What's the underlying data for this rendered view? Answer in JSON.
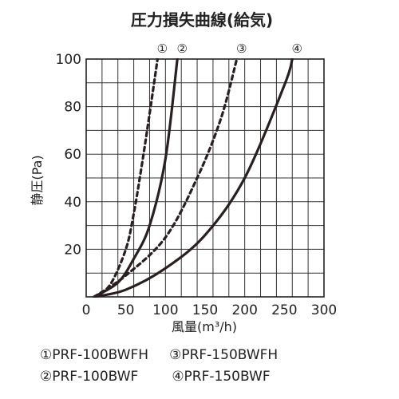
{
  "chart_data": {
    "type": "line",
    "title": "圧力損失曲線(給気)",
    "xlabel": "風量(m³/h)",
    "ylabel": "静圧(Pa)",
    "xlim": [
      0,
      300
    ],
    "ylim": [
      0,
      100
    ],
    "x_ticks": [
      "0",
      "50",
      "100",
      "150",
      "200",
      "250",
      "300"
    ],
    "y_ticks": [
      "20",
      "40",
      "60",
      "80",
      "100"
    ],
    "grid": true,
    "series": [
      {
        "name": "PRF-100BWFH",
        "marker": "①",
        "style": "dashed",
        "x": [
          10,
          30,
          50,
          60,
          70,
          80,
          90
        ],
        "y": [
          0,
          5,
          20,
          35,
          55,
          77,
          100
        ]
      },
      {
        "name": "PRF-100BWF",
        "marker": "②",
        "style": "solid",
        "x": [
          10,
          40,
          60,
          80,
          100,
          115
        ],
        "y": [
          0,
          6,
          16,
          30,
          58,
          100
        ]
      },
      {
        "name": "PRF-150BWFH",
        "marker": "③",
        "style": "dashed",
        "x": [
          10,
          50,
          100,
          140,
          170,
          190
        ],
        "y": [
          0,
          9,
          25,
          50,
          75,
          100
        ]
      },
      {
        "name": "PRF-150BWF",
        "marker": "④",
        "style": "solid",
        "x": [
          10,
          50,
          100,
          150,
          200,
          250,
          260
        ],
        "y": [
          0,
          3,
          12,
          26,
          50,
          89,
          100
        ]
      }
    ]
  },
  "legend": {
    "row1_left": "①PRF-100BWFH",
    "row1_right": "③PRF-150BWFH",
    "row2_left": "②PRF-100BWF",
    "row2_right": "④PRF-150BWF"
  }
}
